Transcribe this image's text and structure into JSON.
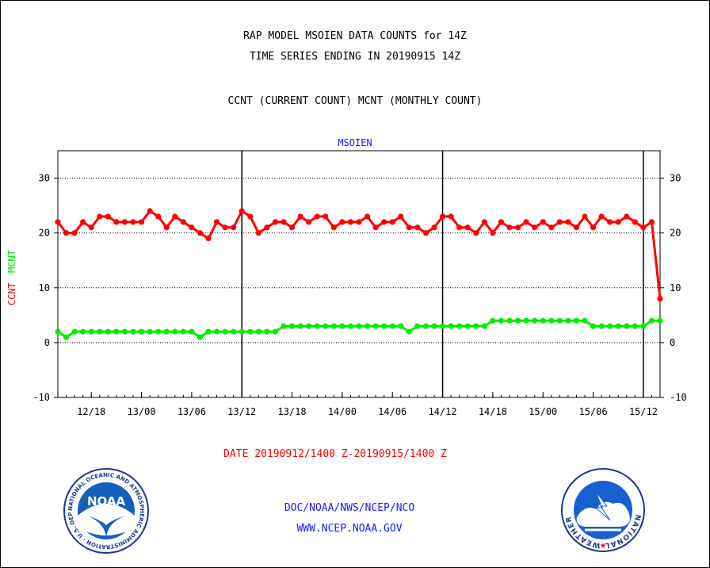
{
  "header": {
    "title": "RAP MODEL MSOIEN DATA COUNTS for 14Z",
    "subtitle": "TIME SERIES ENDING IN 20190915 14Z",
    "counts_label": "CCNT (CURRENT COUNT) MCNT (MONTHLY COUNT)"
  },
  "footer": {
    "date_range": "DATE 20190912/1400 Z-20190915/1400 Z",
    "credit_line1": "DOC/NOAA/NWS/NCEP/NCO",
    "credit_line2": "WWW.NCEP.NOAA.GOV"
  },
  "logos": {
    "noaa": {
      "text": "NOAA",
      "ring_text": "NATIONAL OCEANIC AND ATMOSPHERIC ADMINISTRATION · U.S. DEPARTMENT OF COMMERCE"
    },
    "nws": {
      "ring_text": "NATIONAL WEATHER SERVICE"
    }
  },
  "chart_data": {
    "type": "line",
    "title": "MSOIEN",
    "ylabel_left": [
      "CCNT",
      "MCNT"
    ],
    "ylim": [
      -10,
      35
    ],
    "yticks": [
      -10,
      0,
      10,
      20,
      30
    ],
    "grid": "horizontal dotted at 0, 10, 20, 30",
    "xlim": [
      0,
      72
    ],
    "xticks": [
      {
        "x": 4,
        "label": "12/18"
      },
      {
        "x": 10,
        "label": "13/00"
      },
      {
        "x": 16,
        "label": "13/06"
      },
      {
        "x": 22,
        "label": "13/12"
      },
      {
        "x": 28,
        "label": "13/18"
      },
      {
        "x": 34,
        "label": "14/00"
      },
      {
        "x": 40,
        "label": "14/06"
      },
      {
        "x": 46,
        "label": "14/12"
      },
      {
        "x": 52,
        "label": "14/18"
      },
      {
        "x": 58,
        "label": "15/00"
      },
      {
        "x": 64,
        "label": "15/06"
      },
      {
        "x": 70,
        "label": "15/12"
      }
    ],
    "vertical_lines_x": [
      22,
      46,
      70
    ],
    "series": [
      {
        "name": "CCNT",
        "color": "#ff0000",
        "values": [
          22,
          20,
          20,
          22,
          21,
          23,
          23,
          22,
          22,
          22,
          22,
          24,
          23,
          21,
          23,
          22,
          21,
          20,
          19,
          22,
          21,
          21,
          24,
          23,
          20,
          21,
          22,
          22,
          21,
          23,
          22,
          23,
          23,
          21,
          22,
          22,
          22,
          23,
          21,
          22,
          22,
          23,
          21,
          21,
          20,
          21,
          23,
          23,
          21,
          21,
          20,
          22,
          20,
          22,
          21,
          21,
          22,
          21,
          22,
          21,
          22,
          22,
          21,
          23,
          21,
          23,
          22,
          22,
          23,
          22,
          21,
          22,
          8
        ]
      },
      {
        "name": "MCNT",
        "color": "#00ee00",
        "values": [
          2,
          1,
          2,
          2,
          2,
          2,
          2,
          2,
          2,
          2,
          2,
          2,
          2,
          2,
          2,
          2,
          2,
          1,
          2,
          2,
          2,
          2,
          2,
          2,
          2,
          2,
          2,
          3,
          3,
          3,
          3,
          3,
          3,
          3,
          3,
          3,
          3,
          3,
          3,
          3,
          3,
          3,
          2,
          3,
          3,
          3,
          3,
          3,
          3,
          3,
          3,
          3,
          4,
          4,
          4,
          4,
          4,
          4,
          4,
          4,
          4,
          4,
          4,
          4,
          3,
          3,
          3,
          3,
          3,
          3,
          3,
          4,
          4
        ]
      }
    ]
  }
}
